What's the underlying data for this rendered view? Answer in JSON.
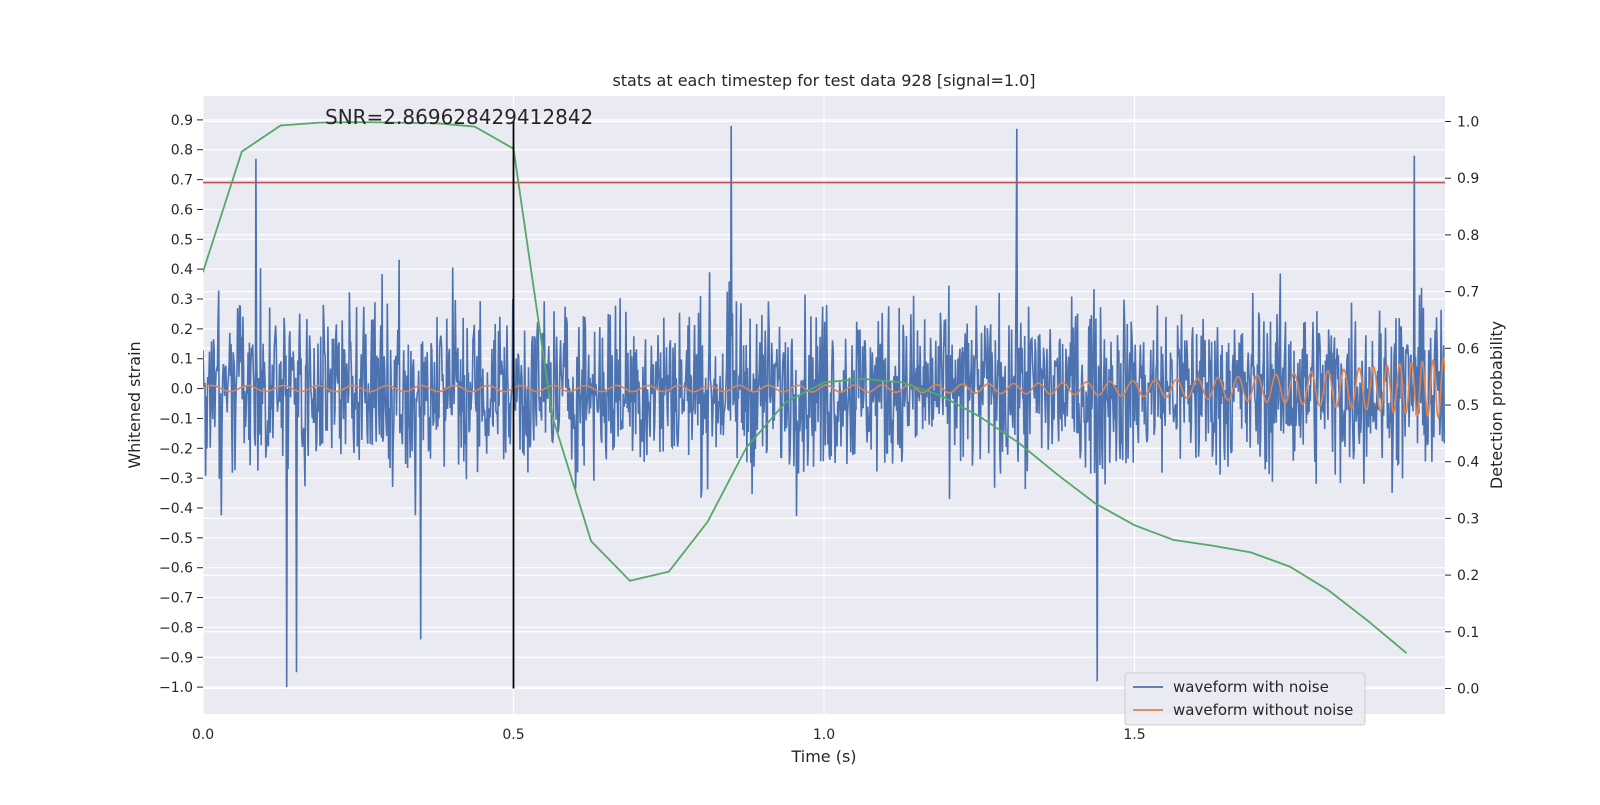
{
  "chart_data": {
    "type": "line",
    "title": "stats at each timestep for test data 928 [signal=1.0]",
    "annotation": "SNR=2.869628429412842",
    "xlabel": "Time (s)",
    "ylabel_left": "Whitened strain",
    "ylabel_right": "Detection probability",
    "xlim": [
      0.0,
      2.0
    ],
    "ylim_left": [
      -1.09,
      0.98
    ],
    "ylim_right": [
      -0.045,
      1.045
    ],
    "x_ticks": [
      "0.0",
      "0.5",
      "1.0",
      "1.5"
    ],
    "y_ticks_left": [
      "0.9",
      "0.8",
      "0.7",
      "0.6",
      "0.5",
      "0.4",
      "0.3",
      "0.2",
      "0.1",
      "0.0",
      "−0.1",
      "−0.2",
      "−0.3",
      "−0.4",
      "−0.5",
      "−0.6",
      "−0.7",
      "−0.8",
      "−0.9",
      "−1.0"
    ],
    "y_ticks_right": [
      "1.0",
      "0.9",
      "0.8",
      "0.7",
      "0.6",
      "0.5",
      "0.4",
      "0.3",
      "0.2",
      "0.1",
      "0.0"
    ],
    "threshold_left": 0.69,
    "threshold_color": "#c44e52",
    "event_time": 0.5,
    "event_line_color": "#000000",
    "legend_location": "lower-right",
    "series": [
      {
        "name": "waveform with noise",
        "axis": "left",
        "color": "#4c72b0",
        "description": "dense noisy strain, roughly within -0.6..0.6 with spikes to 0.88 and -1.0",
        "spikes": [
          {
            "x": 0.085,
            "y": 0.77
          },
          {
            "x": 0.135,
            "y": -1.0
          },
          {
            "x": 0.15,
            "y": -0.95
          },
          {
            "x": 0.35,
            "y": -0.84
          },
          {
            "x": 0.85,
            "y": 0.88
          },
          {
            "x": 1.31,
            "y": 0.87
          },
          {
            "x": 1.44,
            "y": -0.98
          },
          {
            "x": 1.95,
            "y": 0.78
          }
        ]
      },
      {
        "name": "waveform without noise",
        "axis": "left",
        "color": "#dd8452",
        "description": "chirp: amplitude grows from 0.01 to 0.1, frequency increases toward t=2.0"
      },
      {
        "name": "detection probability",
        "axis": "right",
        "color": "#55a868",
        "x": [
          0.0,
          0.0625,
          0.125,
          0.1875,
          0.25,
          0.3125,
          0.375,
          0.4375,
          0.5,
          0.5625,
          0.625,
          0.6875,
          0.75,
          0.8125,
          0.875,
          0.9375,
          1.0,
          1.0625,
          1.125,
          1.1875,
          1.25,
          1.3125,
          1.375,
          1.4375,
          1.5,
          1.5625,
          1.625,
          1.6875,
          1.75,
          1.8125,
          1.875,
          1.9375
        ],
        "y": [
          0.735,
          0.947,
          0.993,
          0.998,
          0.999,
          0.998,
          0.997,
          0.991,
          0.952,
          0.48,
          0.26,
          0.19,
          0.206,
          0.294,
          0.425,
          0.504,
          0.54,
          0.546,
          0.54,
          0.517,
          0.48,
          0.434,
          0.378,
          0.326,
          0.288,
          0.262,
          0.252,
          0.24,
          0.215,
          0.173,
          0.12,
          0.063
        ]
      }
    ]
  }
}
